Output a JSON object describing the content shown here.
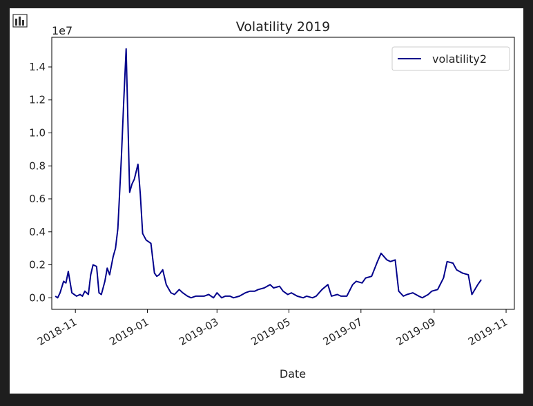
{
  "window": {
    "icon": "bar-chart-icon"
  },
  "chart_data": {
    "type": "line",
    "title": "Volatility 2019",
    "xlabel": "Date",
    "ylabel": "",
    "y_scale_label": "1e7",
    "xlim": [
      "2018-10-12",
      "2019-11-08"
    ],
    "ylim": [
      -0.07,
      1.58
    ],
    "x_tick_labels": [
      "2018-11",
      "2019-01",
      "2019-03",
      "2019-05",
      "2019-07",
      "2019-09",
      "2019-11"
    ],
    "x_tick_dates": [
      "2018-11-01",
      "2019-01-01",
      "2019-03-01",
      "2019-05-01",
      "2019-07-01",
      "2019-09-01",
      "2019-11-01"
    ],
    "y_ticks": [
      0.0,
      0.2,
      0.4,
      0.6,
      0.8,
      1.0,
      1.2,
      1.4
    ],
    "y_tick_labels": [
      "0.0",
      "0.2",
      "0.4",
      "0.6",
      "0.8",
      "1.0",
      "1.2",
      "1.4"
    ],
    "grid": false,
    "legend": {
      "position": "upper-right",
      "entries": [
        "volatility2"
      ]
    },
    "series": [
      {
        "name": "volatility2",
        "color": "#00008b",
        "x": [
          "2018-10-15",
          "2018-10-17",
          "2018-10-19",
          "2018-10-22",
          "2018-10-24",
          "2018-10-26",
          "2018-10-29",
          "2018-10-31",
          "2018-11-02",
          "2018-11-05",
          "2018-11-07",
          "2018-11-09",
          "2018-11-12",
          "2018-11-14",
          "2018-11-16",
          "2018-11-19",
          "2018-11-21",
          "2018-11-23",
          "2018-11-26",
          "2018-11-28",
          "2018-11-30",
          "2018-12-03",
          "2018-12-05",
          "2018-12-07",
          "2018-12-10",
          "2018-12-12",
          "2018-12-14",
          "2018-12-17",
          "2018-12-19",
          "2018-12-21",
          "2018-12-24",
          "2018-12-26",
          "2018-12-28",
          "2018-12-31",
          "2019-01-02",
          "2019-01-04",
          "2019-01-07",
          "2019-01-09",
          "2019-01-11",
          "2019-01-14",
          "2019-01-17",
          "2019-01-21",
          "2019-01-24",
          "2019-01-28",
          "2019-01-31",
          "2019-02-04",
          "2019-02-07",
          "2019-02-11",
          "2019-02-14",
          "2019-02-18",
          "2019-02-22",
          "2019-02-26",
          "2019-03-01",
          "2019-03-05",
          "2019-03-08",
          "2019-03-12",
          "2019-03-15",
          "2019-03-20",
          "2019-03-25",
          "2019-03-29",
          "2019-04-02",
          "2019-04-05",
          "2019-04-10",
          "2019-04-15",
          "2019-04-18",
          "2019-04-23",
          "2019-04-26",
          "2019-04-30",
          "2019-05-03",
          "2019-05-08",
          "2019-05-13",
          "2019-05-16",
          "2019-05-21",
          "2019-05-24",
          "2019-05-29",
          "2019-06-03",
          "2019-06-06",
          "2019-06-11",
          "2019-06-14",
          "2019-06-19",
          "2019-06-24",
          "2019-06-27",
          "2019-07-02",
          "2019-07-05",
          "2019-07-10",
          "2019-07-15",
          "2019-07-18",
          "2019-07-23",
          "2019-07-26",
          "2019-07-30",
          "2019-08-02",
          "2019-08-06",
          "2019-08-09",
          "2019-08-14",
          "2019-08-19",
          "2019-08-22",
          "2019-08-27",
          "2019-08-30",
          "2019-09-04",
          "2019-09-09",
          "2019-09-12",
          "2019-09-17",
          "2019-09-20",
          "2019-09-25",
          "2019-09-30",
          "2019-10-03",
          "2019-10-08",
          "2019-10-11"
        ],
        "values": [
          0.01,
          0.0,
          0.03,
          0.1,
          0.09,
          0.16,
          0.03,
          0.02,
          0.01,
          0.02,
          0.01,
          0.04,
          0.02,
          0.14,
          0.2,
          0.19,
          0.03,
          0.02,
          0.1,
          0.18,
          0.14,
          0.25,
          0.3,
          0.42,
          0.85,
          1.2,
          1.51,
          0.64,
          0.69,
          0.72,
          0.81,
          0.63,
          0.39,
          0.35,
          0.34,
          0.33,
          0.15,
          0.13,
          0.14,
          0.17,
          0.08,
          0.03,
          0.02,
          0.05,
          0.03,
          0.01,
          0.0,
          0.01,
          0.01,
          0.01,
          0.02,
          0.0,
          0.03,
          0.0,
          0.01,
          0.01,
          0.0,
          0.01,
          0.03,
          0.04,
          0.04,
          0.05,
          0.06,
          0.08,
          0.06,
          0.07,
          0.04,
          0.02,
          0.03,
          0.01,
          0.0,
          0.01,
          0.0,
          0.01,
          0.05,
          0.08,
          0.01,
          0.02,
          0.01,
          0.01,
          0.08,
          0.1,
          0.09,
          0.12,
          0.13,
          0.22,
          0.27,
          0.23,
          0.22,
          0.23,
          0.04,
          0.01,
          0.02,
          0.03,
          0.01,
          0.0,
          0.02,
          0.04,
          0.05,
          0.12,
          0.22,
          0.21,
          0.17,
          0.15,
          0.14,
          0.02,
          0.08,
          0.11
        ]
      }
    ]
  }
}
